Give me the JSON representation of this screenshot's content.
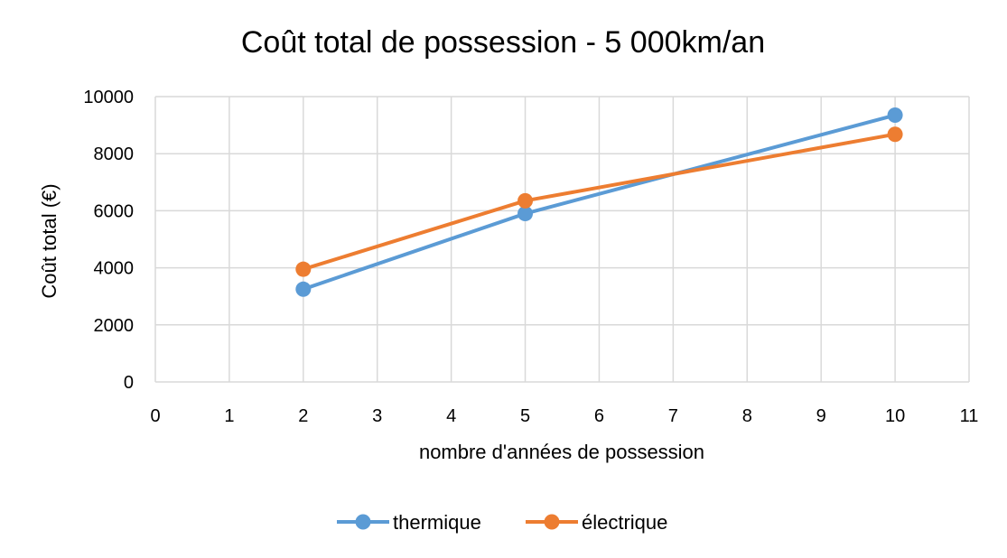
{
  "chart_data": {
    "type": "line",
    "title": "Coût total de possession - 5 000km/an",
    "xlabel": "nombre d'années de possession",
    "ylabel": "Coût total (€)",
    "xlim": [
      0,
      11
    ],
    "ylim": [
      0,
      10000
    ],
    "x_ticks": [
      0,
      1,
      2,
      3,
      4,
      5,
      6,
      7,
      8,
      9,
      10,
      11
    ],
    "y_ticks": [
      0,
      2000,
      4000,
      6000,
      8000,
      10000
    ],
    "grid": true,
    "legend_position": "bottom",
    "series": [
      {
        "name": "thermique",
        "color": "#5b9bd5",
        "x": [
          2,
          5,
          10
        ],
        "y": [
          3250,
          5900,
          9350
        ]
      },
      {
        "name": "électrique",
        "color": "#ed7d31",
        "x": [
          2,
          5,
          10
        ],
        "y": [
          3950,
          6350,
          8680
        ]
      }
    ]
  }
}
